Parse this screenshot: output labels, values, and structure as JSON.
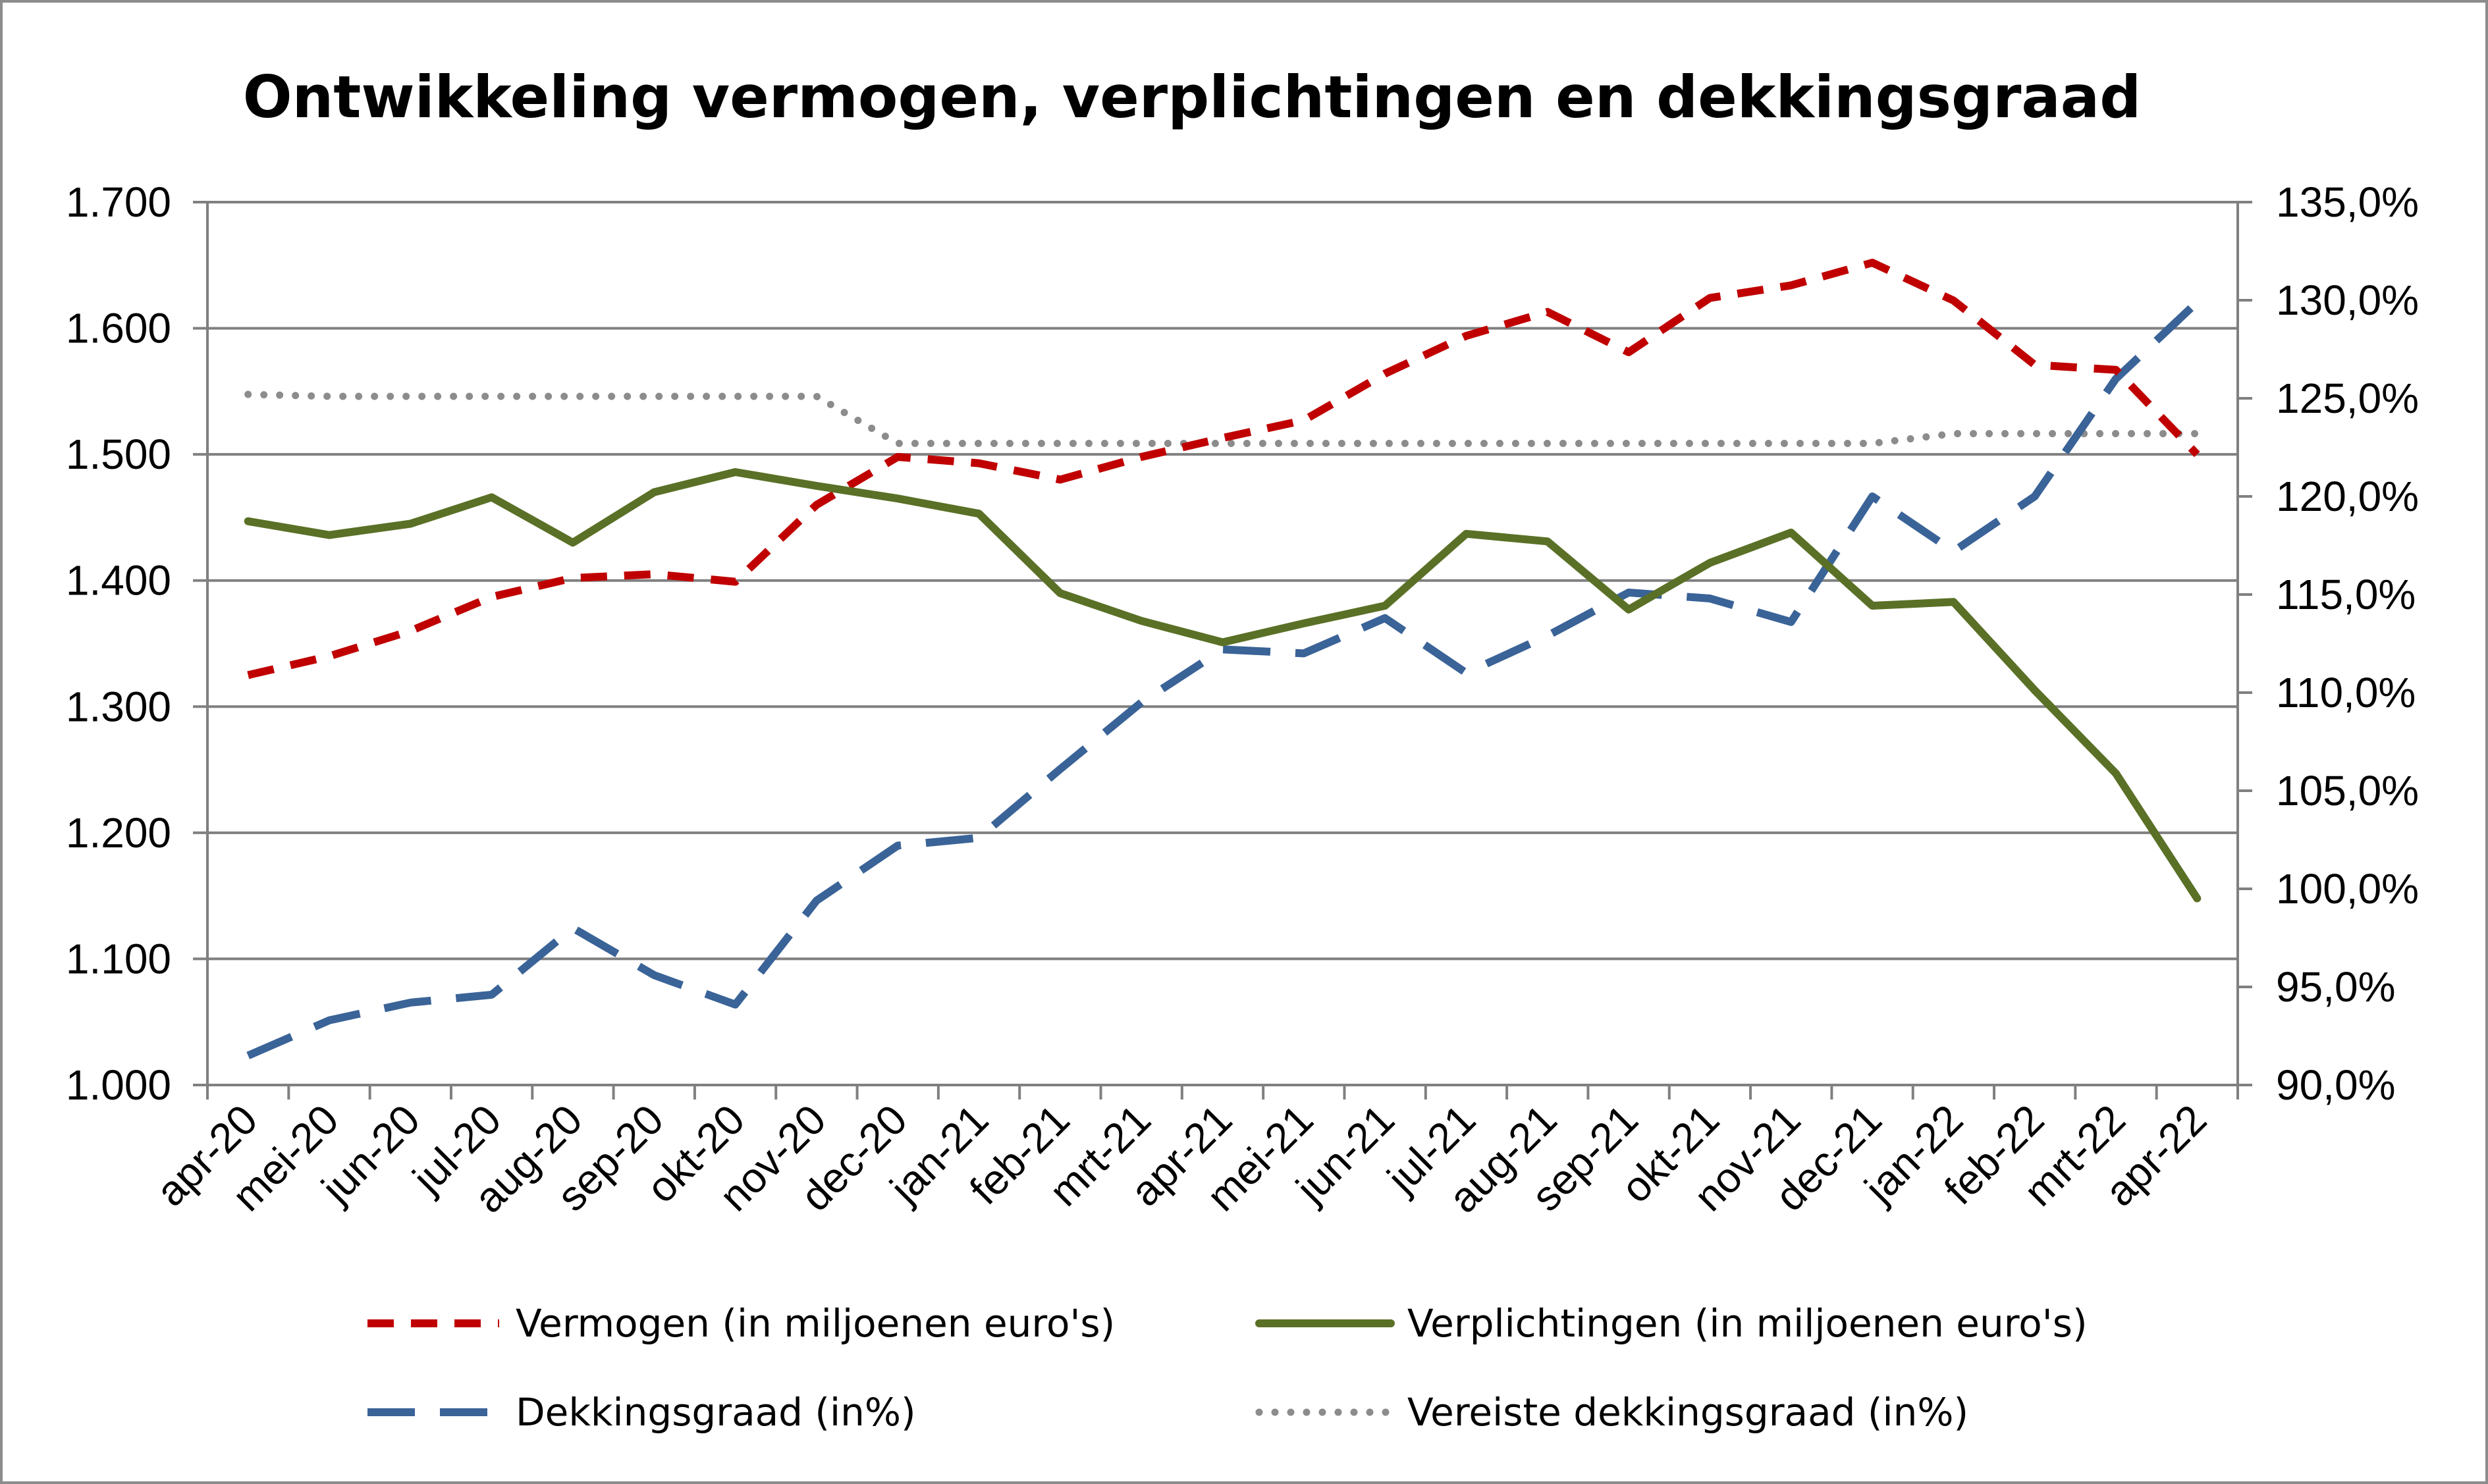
{
  "chart_data": {
    "type": "line",
    "title": "Ontwikkeling vermogen, verplichtingen en dekkingsgraad",
    "categories": [
      "apr-20",
      "mei-20",
      "jun-20",
      "jul-20",
      "aug-20",
      "sep-20",
      "okt-20",
      "nov-20",
      "dec-20",
      "jan-21",
      "feb-21",
      "mrt-21",
      "apr-21",
      "mei-21",
      "jun-21",
      "jul-21",
      "aug-21",
      "sep-21",
      "okt-21",
      "nov-21",
      "dec-21",
      "jan-22",
      "feb-22",
      "mrt-22",
      "apr-22"
    ],
    "y_left": {
      "range": [
        1000,
        1700
      ],
      "ticks": [
        1000,
        1100,
        1200,
        1300,
        1400,
        1500,
        1600,
        1700
      ],
      "tick_labels": [
        "1.000",
        "1.100",
        "1.200",
        "1.300",
        "1.400",
        "1.500",
        "1.600",
        "1.700"
      ]
    },
    "y_right": {
      "range": [
        90,
        135
      ],
      "ticks": [
        90,
        95,
        100,
        105,
        110,
        115,
        120,
        125,
        130,
        135
      ],
      "tick_labels": [
        "90,0%",
        "95,0%",
        "100,0%",
        "105,0%",
        "110,0%",
        "115,0%",
        "120,0%",
        "125,0%",
        "130,0%",
        "135,0%"
      ]
    },
    "grid": "horizontal",
    "legend_position": "bottom",
    "series": [
      {
        "name": "Vermogen (in miljoenen euro's)",
        "axis": "left",
        "color": "#C00000",
        "style": "dashed",
        "values": [
          1325,
          1340,
          1360,
          1387,
          1402,
          1405,
          1399,
          1460,
          1498,
          1493,
          1480,
          1498,
          1513,
          1527,
          1564,
          1594,
          1613,
          1581,
          1624,
          1634,
          1652,
          1622,
          1571,
          1567,
          1500
        ]
      },
      {
        "name": "Verplichtingen (in miljoenen euro's)",
        "axis": "left",
        "color": "#5A7026",
        "style": "solid",
        "values": [
          1447,
          1436,
          1445,
          1466,
          1430,
          1470,
          1486,
          1475,
          1465,
          1453,
          1390,
          1368,
          1351,
          1366,
          1380,
          1437,
          1431,
          1377,
          1414,
          1438,
          1380,
          1383,
          1313,
          1247,
          1148
        ]
      },
      {
        "name": "Dekkingsgraad (in%)",
        "axis": "right",
        "color": "#3A6397",
        "style": "long-dashed",
        "values": [
          91.5,
          93.3,
          94.2,
          94.6,
          98.0,
          95.6,
          94.1,
          99.4,
          102.2,
          102.6,
          106.1,
          109.5,
          112.2,
          112.0,
          113.8,
          111.0,
          112.9,
          115.1,
          114.8,
          113.6,
          120.0,
          117.2,
          120.0,
          126.0,
          129.9
        ]
      },
      {
        "name": "Vereiste dekkingsgraad (in%)",
        "axis": "right",
        "color": "#8C8C8C",
        "style": "dotted",
        "values": [
          125.2,
          125.1,
          125.1,
          125.1,
          125.1,
          125.1,
          125.1,
          125.1,
          122.7,
          122.7,
          122.7,
          122.7,
          122.7,
          122.7,
          122.7,
          122.7,
          122.7,
          122.7,
          122.7,
          122.7,
          122.7,
          123.2,
          123.2,
          123.2,
          123.2
        ]
      }
    ]
  }
}
